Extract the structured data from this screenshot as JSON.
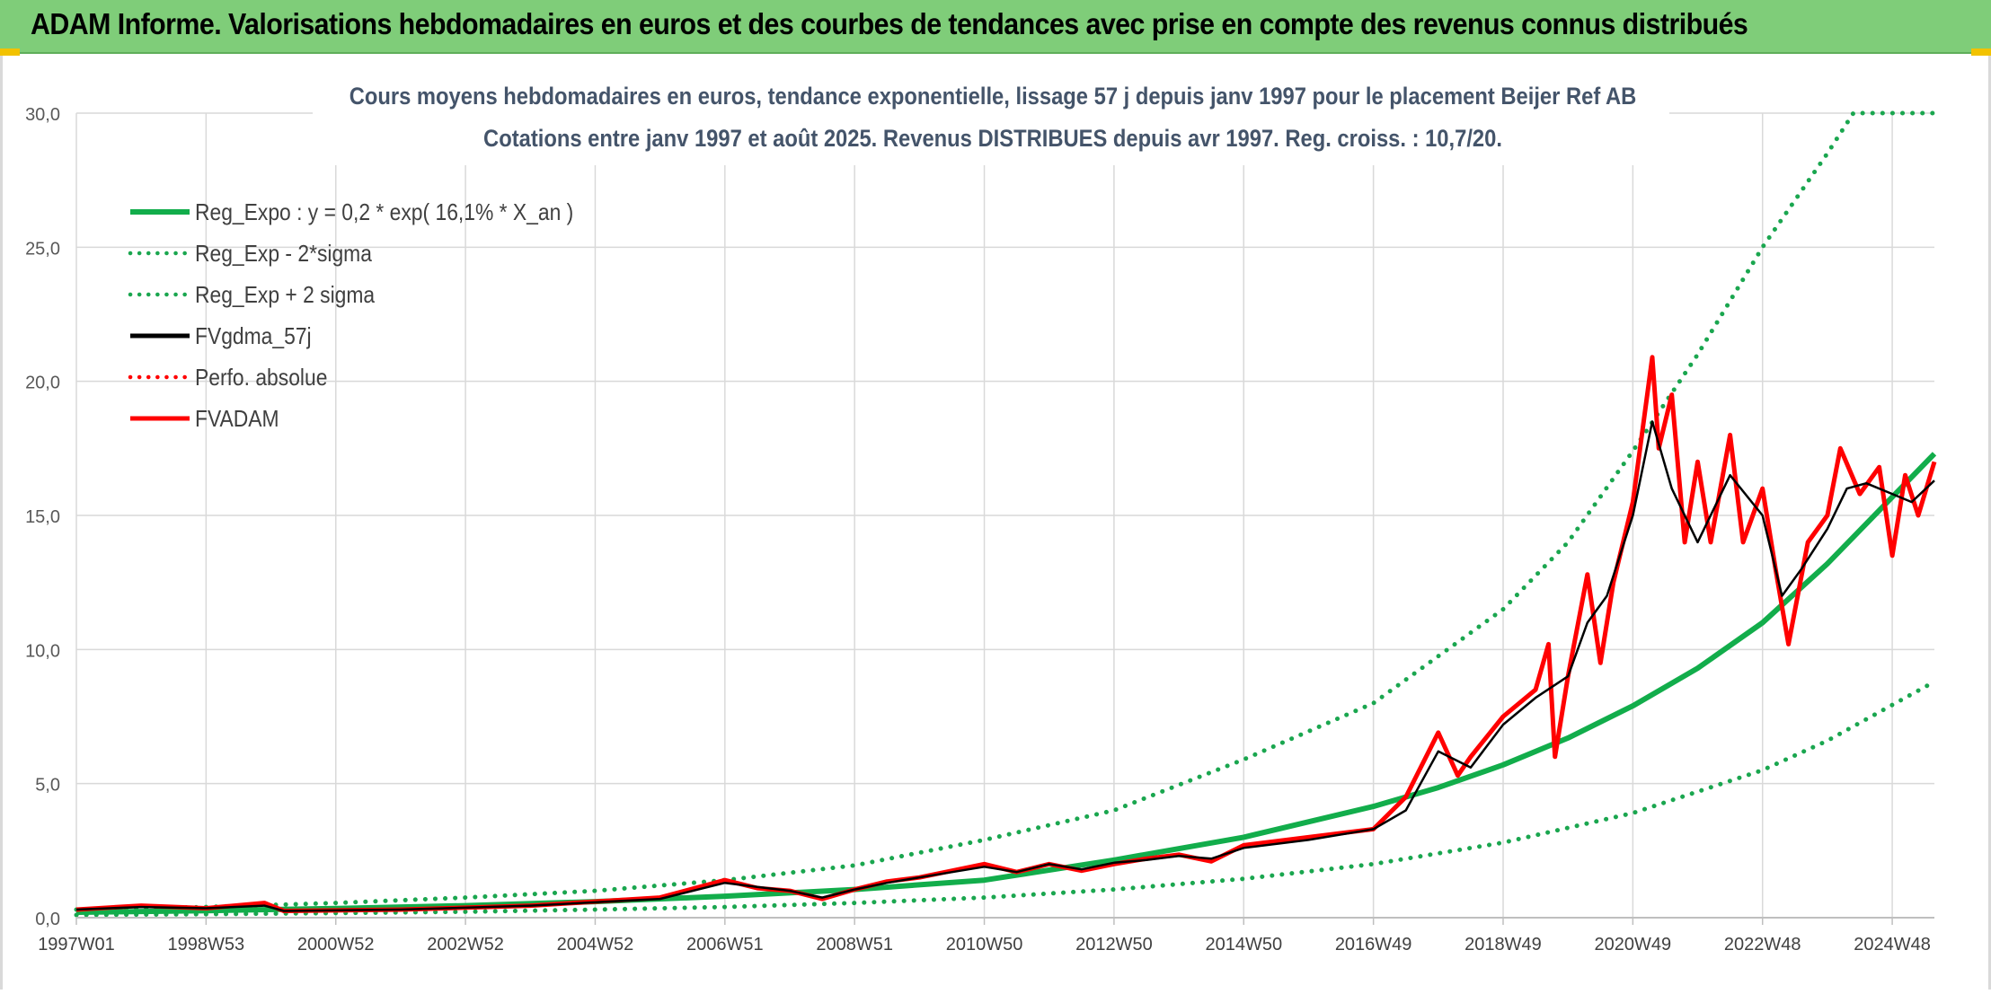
{
  "header": {
    "title": "ADAM Informe. Valorisations hebdomadaires en euros et des courbes de tendances avec prise en compte des revenus connus distribués"
  },
  "colors": {
    "header_bg": "#7fcd79",
    "trend_green": "#12ad4b",
    "band_green": "#1aa64f",
    "smooth_black": "#000000",
    "price_red": "#ff0000",
    "grid": "#d9d9d9"
  },
  "chart_data": {
    "type": "line",
    "title": "Cours moyens hebdomadaires en euros, tendance exponentielle, lissage 57 j depuis janv 1997 pour le placement Beijer Ref AB",
    "subtitle": "Cotations entre janv 1997 et août 2025. Revenus DISTRIBUES depuis avr 1997. Reg. croiss. : 10,7/20.",
    "xlabel": "",
    "ylabel": "",
    "x_range": [
      1997.0,
      2025.65
    ],
    "ylim": [
      0,
      30
    ],
    "y_ticks": [
      "0,0",
      "5,0",
      "10,0",
      "15,0",
      "20,0",
      "25,0",
      "30,0"
    ],
    "x_tick_labels": [
      "1997W01",
      "1998W53",
      "2000W52",
      "2002W52",
      "2004W52",
      "2006W51",
      "2008W51",
      "2010W50",
      "2012W50",
      "2014W50",
      "2016W49",
      "2018W49",
      "2020W49",
      "2022W48",
      "2024W48"
    ],
    "x_tick_years": [
      1997.0,
      1999.0,
      2001.0,
      2003.0,
      2005.0,
      2007.0,
      2009.0,
      2011.0,
      2013.0,
      2015.0,
      2017.0,
      2019.0,
      2021.0,
      2023.0,
      2025.0
    ],
    "grid": true,
    "legend_position": "top-left",
    "legend": [
      {
        "label": "Reg_Expo : y = 0,2 * exp( 16,1% *  X_an )",
        "style": "solid-thick",
        "color": "#12ad4b"
      },
      {
        "label": "Reg_Exp - 2*sigma",
        "style": "dotted",
        "color": "#1aa64f"
      },
      {
        "label": "Reg_Exp + 2 sigma",
        "style": "dotted",
        "color": "#1aa64f"
      },
      {
        "label": "FVgdma_57j",
        "style": "solid",
        "color": "#000000"
      },
      {
        "label": "Perfo. absolue",
        "style": "dotted",
        "color": "#ff0000"
      },
      {
        "label": "FVADAM",
        "style": "solid-thick",
        "color": "#ff0000"
      }
    ],
    "series": [
      {
        "name": "Reg_Expo : y = 0,2 * exp( 16,1% *  X_an )",
        "x": [
          1997.0,
          1999.0,
          2001.0,
          2003.0,
          2005.0,
          2007.0,
          2009.0,
          2011.0,
          2013.0,
          2015.0,
          2017.0,
          2018.0,
          2019.0,
          2020.0,
          2021.0,
          2022.0,
          2023.0,
          2024.0,
          2025.65
        ],
        "values": [
          0.2,
          0.26,
          0.34,
          0.45,
          0.6,
          0.8,
          1.05,
          1.4,
          2.15,
          3.0,
          4.15,
          4.85,
          5.7,
          6.7,
          7.9,
          9.3,
          11.0,
          13.2,
          17.3
        ]
      },
      {
        "name": "Reg_Exp - 2*sigma",
        "x": [
          1997.0,
          1999.0,
          2001.0,
          2003.0,
          2005.0,
          2007.0,
          2009.0,
          2011.0,
          2013.0,
          2015.0,
          2017.0,
          2019.0,
          2021.0,
          2023.0,
          2024.0,
          2025.65
        ],
        "values": [
          0.1,
          0.13,
          0.17,
          0.22,
          0.3,
          0.4,
          0.55,
          0.75,
          1.05,
          1.45,
          2.0,
          2.8,
          3.9,
          5.5,
          6.6,
          8.8
        ]
      },
      {
        "name": "Reg_Exp + 2 sigma",
        "x": [
          1997.0,
          1999.0,
          2001.0,
          2003.0,
          2005.0,
          2007.0,
          2009.0,
          2011.0,
          2013.0,
          2015.0,
          2017.0,
          2019.0,
          2020.0,
          2021.0,
          2022.0,
          2023.0,
          2024.0,
          2024.4,
          2025.65
        ],
        "values": [
          0.3,
          0.4,
          0.55,
          0.75,
          1.0,
          1.4,
          1.95,
          2.9,
          4.0,
          5.9,
          8.0,
          11.5,
          14.0,
          17.4,
          21.0,
          25.0,
          28.5,
          30.0,
          30.0
        ]
      },
      {
        "name": "FVgdma_57j",
        "x": [
          1997.0,
          1998.0,
          1999.0,
          1999.9,
          2000.2,
          2002.0,
          2004.0,
          2006.0,
          2007.0,
          2007.5,
          2008.0,
          2008.5,
          2009.0,
          2009.5,
          2010.0,
          2011.0,
          2011.5,
          2012.0,
          2012.5,
          2013.0,
          2013.5,
          2014.0,
          2014.5,
          2015.0,
          2016.0,
          2017.0,
          2017.5,
          2018.0,
          2018.5,
          2019.0,
          2019.5,
          2020.0,
          2020.3,
          2020.6,
          2021.0,
          2021.3,
          2021.6,
          2022.0,
          2022.5,
          2023.0,
          2023.3,
          2023.6,
          2024.0,
          2024.3,
          2024.6,
          2025.0,
          2025.3,
          2025.65
        ],
        "values": [
          0.3,
          0.4,
          0.35,
          0.45,
          0.25,
          0.3,
          0.45,
          0.7,
          1.3,
          1.15,
          1.0,
          0.75,
          1.05,
          1.3,
          1.5,
          1.9,
          1.7,
          2.0,
          1.8,
          2.05,
          2.15,
          2.3,
          2.2,
          2.6,
          2.9,
          3.3,
          4.0,
          6.2,
          5.6,
          7.2,
          8.2,
          9.0,
          11.0,
          12.0,
          15.0,
          18.5,
          16.0,
          14.0,
          16.5,
          15.0,
          12.0,
          13.0,
          14.5,
          16.0,
          16.2,
          15.8,
          15.5,
          16.3
        ]
      },
      {
        "name": "FVADAM",
        "x": [
          1997.0,
          1998.0,
          1999.0,
          1999.9,
          2000.2,
          2002.0,
          2004.0,
          2006.0,
          2007.0,
          2007.5,
          2008.0,
          2008.5,
          2009.0,
          2009.5,
          2010.0,
          2011.0,
          2011.5,
          2012.0,
          2012.5,
          2013.0,
          2013.5,
          2014.0,
          2014.5,
          2015.0,
          2016.0,
          2017.0,
          2017.5,
          2018.0,
          2018.3,
          2018.5,
          2019.0,
          2019.5,
          2019.7,
          2019.8,
          2020.0,
          2020.3,
          2020.5,
          2020.7,
          2021.0,
          2021.3,
          2021.4,
          2021.6,
          2021.8,
          2022.0,
          2022.2,
          2022.5,
          2022.7,
          2023.0,
          2023.2,
          2023.4,
          2023.7,
          2024.0,
          2024.2,
          2024.5,
          2024.8,
          2025.0,
          2025.2,
          2025.4,
          2025.65
        ],
        "values": [
          0.3,
          0.45,
          0.35,
          0.55,
          0.25,
          0.3,
          0.45,
          0.75,
          1.4,
          1.1,
          1.0,
          0.7,
          1.05,
          1.35,
          1.5,
          2.0,
          1.7,
          2.0,
          1.75,
          2.0,
          2.2,
          2.35,
          2.1,
          2.7,
          3.0,
          3.3,
          4.5,
          6.9,
          5.3,
          6.0,
          7.5,
          8.5,
          10.2,
          6.0,
          9.0,
          12.8,
          9.5,
          12.5,
          15.5,
          20.9,
          17.5,
          19.5,
          14.0,
          17.0,
          14.0,
          18.0,
          14.0,
          16.0,
          13.0,
          10.2,
          14.0,
          15.0,
          17.5,
          15.8,
          16.8,
          13.5,
          16.5,
          15.0,
          17.0
        ]
      }
    ]
  }
}
